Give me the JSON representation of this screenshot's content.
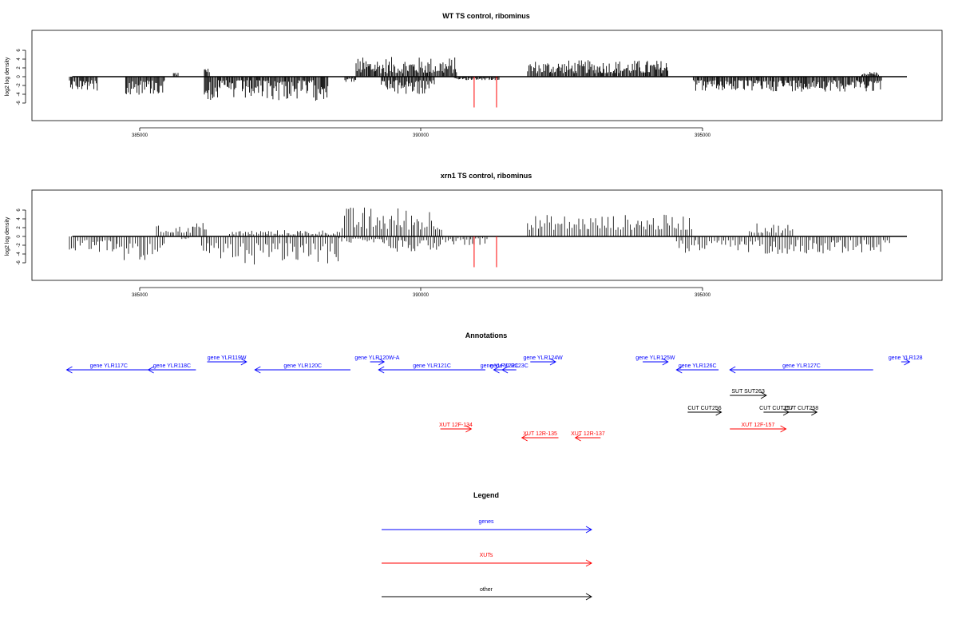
{
  "chart_data": [
    {
      "type": "bar",
      "title": "WT TS control, ribominus",
      "ylabel": "log2 log density",
      "xlim": [
        383700,
        398700
      ],
      "ylim": [
        -7,
        8
      ],
      "xticks": [
        "385000",
        "390000",
        "395000"
      ],
      "yticks": [
        "-6",
        "-4",
        "-2",
        "0",
        "2",
        "4",
        "6"
      ],
      "tracks": [
        {
          "name": "positive-strand coverage",
          "direction": 1,
          "color": "#000000",
          "segments": [
            [
              385600,
              385700,
              0.4,
              1.2
            ],
            [
              386150,
              386250,
              1.0,
              2.0
            ],
            [
              388850,
              390650,
              0.8,
              4.5
            ],
            [
              391900,
              394400,
              0.8,
              3.8
            ],
            [
              397850,
              398150,
              0.4,
              1.2
            ]
          ]
        },
        {
          "name": "negative-strand coverage",
          "direction": -1,
          "color": "#000000",
          "segments": [
            [
              383750,
              384250,
              0.8,
              3.2
            ],
            [
              384750,
              385450,
              0.8,
              4.2
            ],
            [
              386150,
              388350,
              0.8,
              5.5
            ],
            [
              388650,
              388850,
              0.4,
              1.2
            ],
            [
              389300,
              390250,
              0.8,
              4.3
            ],
            [
              390600,
              391400,
              0.3,
              0.8
            ],
            [
              394850,
              398200,
              0.8,
              3.4
            ]
          ]
        }
      ],
      "markers": [
        {
          "x": 390950,
          "y": -7.0,
          "color": "#ff0000"
        },
        {
          "x": 391350,
          "y": -7.0,
          "color": "#ff0000"
        }
      ]
    },
    {
      "type": "bar",
      "title": "xrn1 TS control, ribominus",
      "ylabel": "log2 log density",
      "xlim": [
        383700,
        398700
      ],
      "ylim": [
        -7,
        8
      ],
      "xticks": [
        "385000",
        "390000",
        "395000"
      ],
      "yticks": [
        "-6",
        "-4",
        "-2",
        "0",
        "2",
        "4",
        "6"
      ],
      "tracks": [
        {
          "name": "positive-strand coverage",
          "direction": 1,
          "color": "#000000",
          "segments": [
            [
              385300,
              385950,
              0.8,
              2.5
            ],
            [
              385950,
              386200,
              1.5,
              3.2
            ],
            [
              386600,
              388600,
              0.4,
              1.5
            ],
            [
              388600,
              390400,
              1.5,
              6.8
            ],
            [
              391900,
              394850,
              1.5,
              5.0
            ],
            [
              395850,
              396650,
              0.8,
              3.0
            ]
          ]
        },
        {
          "name": "negative-strand coverage",
          "direction": -1,
          "color": "#000000",
          "segments": [
            [
              383750,
              384600,
              0.8,
              4.0
            ],
            [
              384600,
              385450,
              1.5,
              5.5
            ],
            [
              385750,
              385900,
              0.4,
              1.2
            ],
            [
              386100,
              388550,
              1.5,
              6.5
            ],
            [
              388550,
              389350,
              0.4,
              1.5
            ],
            [
              389350,
              390350,
              0.8,
              3.5
            ],
            [
              390350,
              391200,
              0.4,
              2.0
            ],
            [
              394550,
              398350,
              0.8,
              4.0
            ]
          ]
        }
      ],
      "markers": [
        {
          "x": 390950,
          "y": -7.0,
          "color": "#ff0000"
        },
        {
          "x": 391350,
          "y": -7.0,
          "color": "#ff0000"
        }
      ]
    },
    {
      "type": "diagram",
      "title": "Annotations",
      "xlim": [
        383700,
        398700
      ],
      "features": [
        {
          "label": "gene YLR117C",
          "start": 383700,
          "end": 385200,
          "strand": "-",
          "row": 0,
          "color": "#0000ff"
        },
        {
          "label": "gene YLR118C",
          "start": 385150,
          "end": 386000,
          "strand": "-",
          "row": 0,
          "color": "#0000ff"
        },
        {
          "label": "gene YLR119W",
          "start": 386200,
          "end": 386900,
          "strand": "+",
          "row": 1,
          "color": "#0000ff"
        },
        {
          "label": "gene YLR120C",
          "start": 387050,
          "end": 388750,
          "strand": "-",
          "row": 0,
          "color": "#0000ff"
        },
        {
          "label": "gene YLR120W-A",
          "start": 389100,
          "end": 389350,
          "strand": "+",
          "row": 1,
          "color": "#0000ff"
        },
        {
          "label": "gene YLR121C",
          "start": 389250,
          "end": 391150,
          "strand": "-",
          "row": 0,
          "color": "#0000ff"
        },
        {
          "label": "gene YLR122C",
          "start": 391300,
          "end": 391500,
          "strand": "-",
          "row": 0,
          "color": "#0000ff"
        },
        {
          "label": "gene YLR123C",
          "start": 391450,
          "end": 391700,
          "strand": "-",
          "row": 0,
          "color": "#0000ff"
        },
        {
          "label": "gene YLR124W",
          "start": 391950,
          "end": 392400,
          "strand": "+",
          "row": 1,
          "color": "#0000ff"
        },
        {
          "label": "gene YLR125W",
          "start": 393950,
          "end": 394400,
          "strand": "+",
          "row": 1,
          "color": "#0000ff"
        },
        {
          "label": "gene YLR126C",
          "start": 394550,
          "end": 395300,
          "strand": "-",
          "row": 0,
          "color": "#0000ff"
        },
        {
          "label": "gene YLR127C",
          "start": 395500,
          "end": 398050,
          "strand": "-",
          "row": 0,
          "color": "#0000ff"
        },
        {
          "label": "gene YLR128",
          "start": 398550,
          "end": 398700,
          "strand": "+",
          "row": 1,
          "color": "#0000ff"
        },
        {
          "label": "SUT SUT263",
          "start": 395500,
          "end": 396150,
          "strand": "+",
          "row": 2,
          "color": "#000000"
        },
        {
          "label": "CUT CUT256",
          "start": 394750,
          "end": 395350,
          "strand": "+",
          "row": 3,
          "color": "#000000"
        },
        {
          "label": "CUT CUT257",
          "start": 396100,
          "end": 396550,
          "strand": "+",
          "row": 3,
          "color": "#000000"
        },
        {
          "label": "CUT CUT258",
          "start": 396500,
          "end": 397050,
          "strand": "+",
          "row": 3,
          "color": "#000000"
        },
        {
          "label": "XUT 12F-134",
          "start": 390350,
          "end": 390900,
          "strand": "+",
          "row": 4,
          "color": "#ff0000"
        },
        {
          "label": "XUT 12R-135",
          "start": 391800,
          "end": 392450,
          "strand": "-",
          "row": 5,
          "color": "#ff0000"
        },
        {
          "label": "XUT 12R-137",
          "start": 392750,
          "end": 393200,
          "strand": "-",
          "row": 5,
          "color": "#ff0000"
        },
        {
          "label": "XUT 12F-157",
          "start": 395500,
          "end": 396500,
          "strand": "+",
          "row": 4,
          "color": "#ff0000"
        }
      ]
    },
    {
      "type": "legend",
      "title": "Legend",
      "entries": [
        {
          "label": "genes",
          "color": "#0000ff"
        },
        {
          "label": "XUTs",
          "color": "#ff0000"
        },
        {
          "label": "other",
          "color": "#000000"
        }
      ]
    }
  ]
}
